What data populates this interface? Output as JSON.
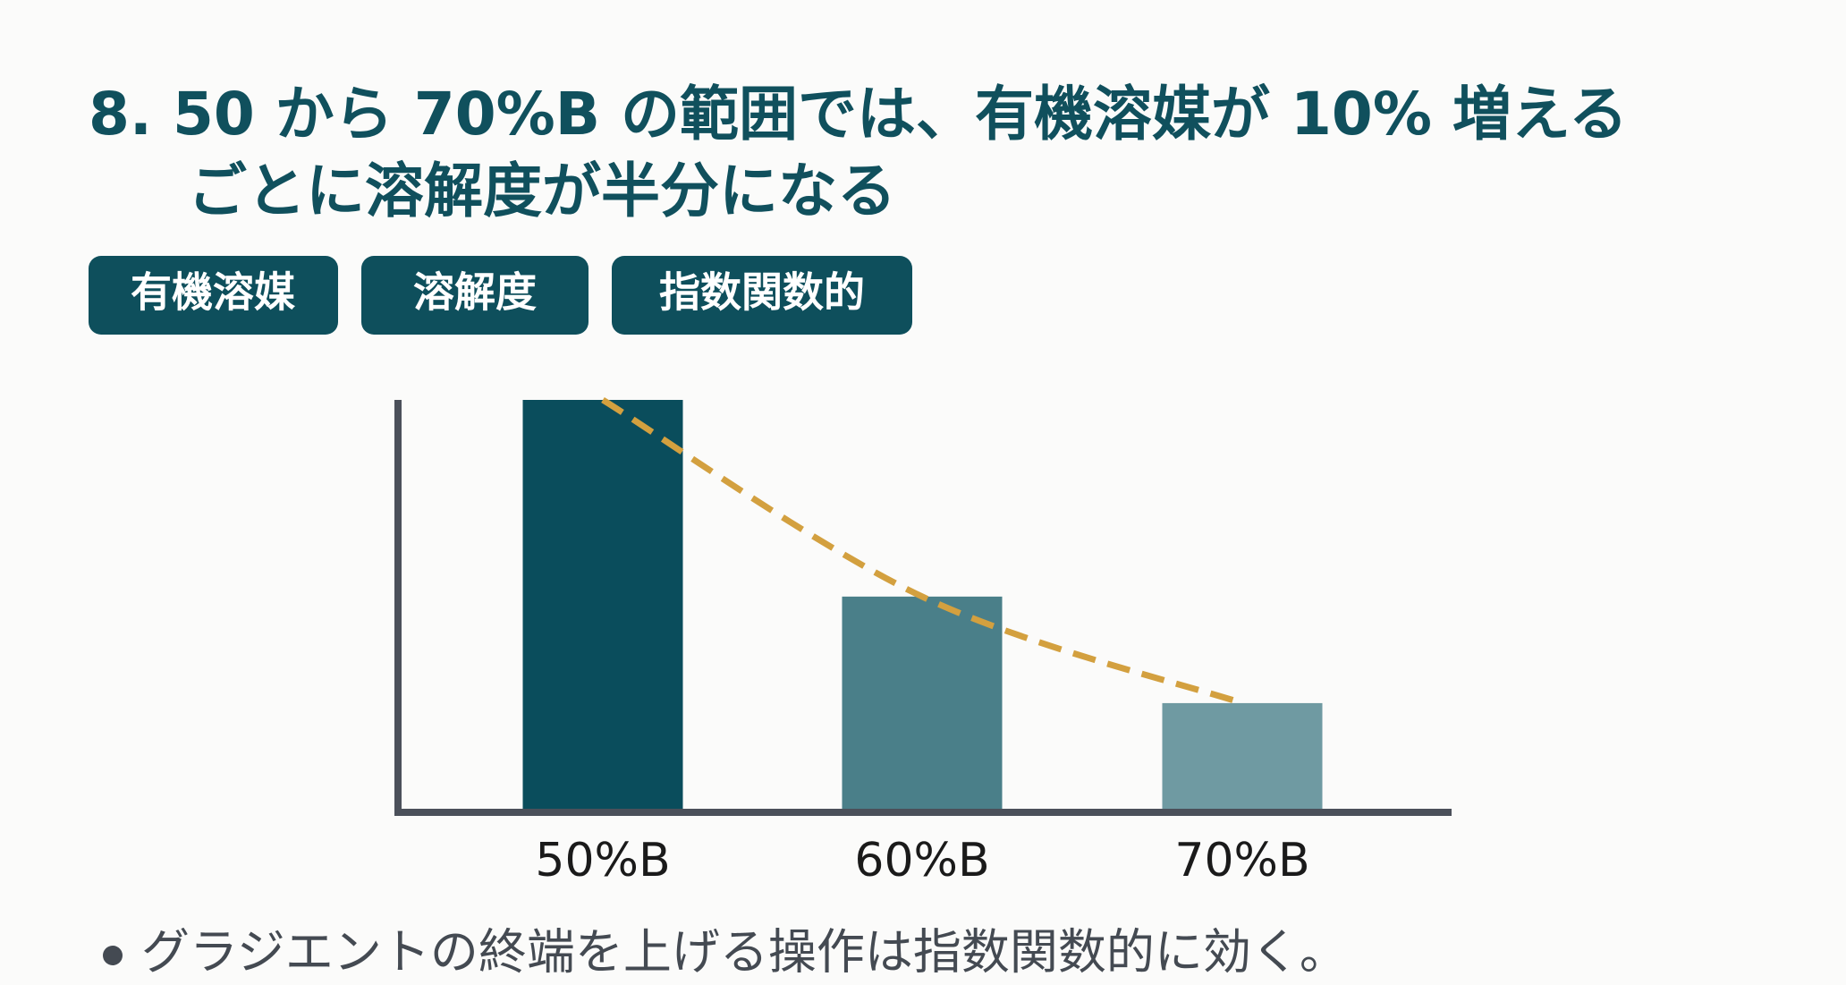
{
  "slide": {
    "title_lines": [
      "8. 50 から 70%B の範囲では、有機溶媒が 10% 増える",
      "ごとに溶解度が半分になる"
    ],
    "tags": [
      "有機溶媒",
      "溶解度",
      "指数関数的"
    ],
    "bullets": [
      "グラジエントの終端を上げる操作は指数関数的に効く。"
    ]
  },
  "chart_data": {
    "type": "bar",
    "categories": [
      "50%B",
      "60%B",
      "70%B"
    ],
    "values": [
      100,
      52,
      26
    ],
    "colors": [
      "#0a4d5c",
      "#4a7f89",
      "#6f9aa2"
    ],
    "ylim": [
      0,
      100
    ],
    "trendline": true,
    "trendline_color": "#d3a03f"
  }
}
